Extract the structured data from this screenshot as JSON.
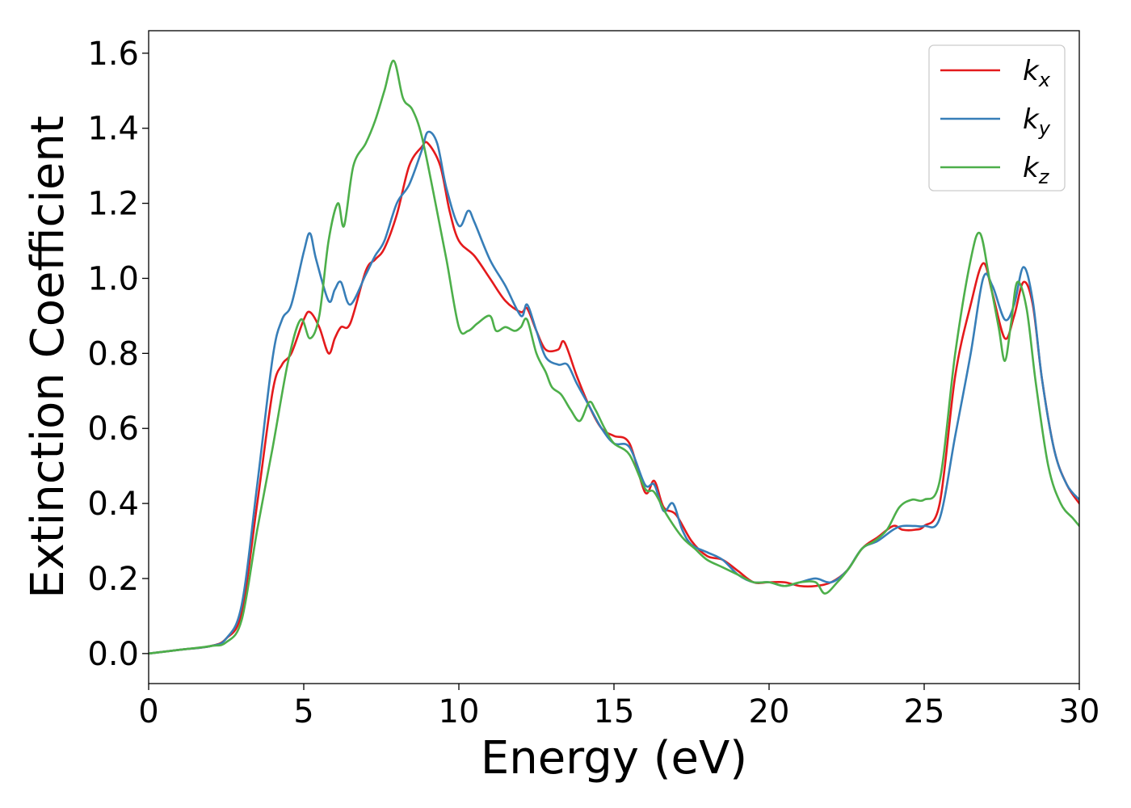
{
  "chart_data": {
    "type": "line",
    "title": "",
    "xlabel": "Energy (eV)",
    "ylabel": "Extinction Coefficient",
    "xlim": [
      0,
      30
    ],
    "ylim": [
      -0.08,
      1.66
    ],
    "xticks": [
      0,
      5,
      10,
      15,
      20,
      25,
      30
    ],
    "xtick_labels": [
      "0",
      "5",
      "10",
      "15",
      "20",
      "25",
      "30"
    ],
    "yticks": [
      0.0,
      0.2,
      0.4,
      0.6,
      0.8,
      1.0,
      1.2,
      1.4,
      1.6
    ],
    "ytick_labels": [
      "0.0",
      "0.2",
      "0.4",
      "0.6",
      "0.8",
      "1.0",
      "1.2",
      "1.4",
      "1.6"
    ],
    "grid": false,
    "legend_position": "top-right",
    "series": [
      {
        "name": "k",
        "subscript": "x",
        "color": "#e41a1c",
        "x": [
          0,
          1,
          2,
          2.5,
          3.0,
          3.5,
          4.0,
          4.3,
          4.6,
          5.0,
          5.2,
          5.5,
          5.8,
          6.0,
          6.2,
          6.5,
          7.0,
          7.3,
          7.6,
          8.0,
          8.4,
          8.8,
          9.0,
          9.4,
          9.7,
          10.0,
          10.5,
          11.0,
          11.5,
          12.0,
          12.2,
          12.5,
          12.8,
          13.2,
          13.4,
          13.8,
          14.2,
          14.6,
          15.0,
          15.5,
          16.0,
          16.3,
          16.6,
          17.0,
          17.5,
          18.0,
          18.5,
          19.0,
          19.5,
          20.0,
          20.5,
          21.0,
          21.5,
          22.0,
          22.5,
          23.0,
          23.5,
          24.0,
          24.3,
          24.7,
          25.0,
          25.5,
          26.0,
          26.5,
          26.9,
          27.2,
          27.6,
          27.9,
          28.2,
          28.5,
          28.8,
          29.2,
          29.6,
          30
        ],
        "values": [
          0.0,
          0.01,
          0.02,
          0.04,
          0.11,
          0.4,
          0.7,
          0.77,
          0.8,
          0.89,
          0.91,
          0.87,
          0.8,
          0.84,
          0.87,
          0.88,
          1.02,
          1.05,
          1.08,
          1.17,
          1.3,
          1.35,
          1.36,
          1.3,
          1.18,
          1.1,
          1.06,
          1.0,
          0.94,
          0.91,
          0.92,
          0.86,
          0.81,
          0.81,
          0.83,
          0.74,
          0.66,
          0.6,
          0.58,
          0.56,
          0.43,
          0.46,
          0.39,
          0.37,
          0.3,
          0.26,
          0.25,
          0.22,
          0.19,
          0.19,
          0.19,
          0.18,
          0.18,
          0.19,
          0.22,
          0.28,
          0.31,
          0.34,
          0.33,
          0.33,
          0.34,
          0.4,
          0.74,
          0.93,
          1.04,
          0.96,
          0.84,
          0.9,
          0.99,
          0.93,
          0.73,
          0.54,
          0.45,
          0.4
        ]
      },
      {
        "name": "k",
        "subscript": "y",
        "color": "#377eb8",
        "x": [
          0,
          1,
          2,
          2.5,
          3.0,
          3.5,
          4.0,
          4.3,
          4.6,
          5.0,
          5.2,
          5.4,
          5.8,
          6.0,
          6.2,
          6.5,
          7.0,
          7.3,
          7.6,
          8.0,
          8.4,
          8.8,
          9.0,
          9.3,
          9.6,
          10.0,
          10.3,
          10.5,
          11.0,
          11.5,
          12.0,
          12.2,
          12.5,
          12.8,
          13.2,
          13.5,
          13.8,
          14.2,
          14.6,
          15.0,
          15.5,
          16.0,
          16.3,
          16.6,
          16.9,
          17.2,
          17.5,
          18.0,
          18.5,
          19.0,
          19.5,
          20.0,
          20.5,
          21.0,
          21.5,
          22.0,
          22.5,
          23.0,
          23.5,
          24.0,
          24.3,
          24.7,
          25.0,
          25.5,
          26.0,
          26.5,
          26.9,
          27.2,
          27.6,
          27.9,
          28.2,
          28.5,
          28.8,
          29.2,
          29.6,
          30
        ],
        "values": [
          0.0,
          0.01,
          0.02,
          0.04,
          0.13,
          0.45,
          0.79,
          0.89,
          0.93,
          1.07,
          1.12,
          1.05,
          0.94,
          0.97,
          0.99,
          0.93,
          1.01,
          1.06,
          1.1,
          1.2,
          1.25,
          1.34,
          1.39,
          1.36,
          1.24,
          1.14,
          1.18,
          1.15,
          1.05,
          0.98,
          0.9,
          0.93,
          0.86,
          0.79,
          0.77,
          0.77,
          0.72,
          0.66,
          0.6,
          0.56,
          0.55,
          0.45,
          0.45,
          0.38,
          0.4,
          0.33,
          0.29,
          0.27,
          0.25,
          0.21,
          0.19,
          0.19,
          0.18,
          0.19,
          0.2,
          0.19,
          0.22,
          0.28,
          0.3,
          0.33,
          0.34,
          0.34,
          0.34,
          0.36,
          0.58,
          0.8,
          1.0,
          0.98,
          0.89,
          0.93,
          1.03,
          0.94,
          0.73,
          0.54,
          0.45,
          0.41
        ]
      },
      {
        "name": "k",
        "subscript": "z",
        "color": "#4daf4a",
        "x": [
          0,
          1,
          2,
          2.5,
          3.0,
          3.5,
          4.0,
          4.5,
          4.9,
          5.2,
          5.5,
          5.8,
          6.1,
          6.3,
          6.6,
          7.0,
          7.3,
          7.6,
          7.9,
          8.2,
          8.5,
          8.8,
          9.2,
          9.6,
          10.0,
          10.3,
          10.6,
          11.0,
          11.2,
          11.5,
          11.8,
          12.0,
          12.2,
          12.5,
          12.8,
          13.0,
          13.3,
          13.6,
          13.9,
          14.2,
          14.4,
          14.7,
          15.0,
          15.5,
          16.0,
          16.3,
          16.7,
          17.2,
          17.6,
          18.0,
          18.5,
          19.0,
          19.5,
          20.0,
          20.5,
          21.0,
          21.5,
          21.8,
          22.2,
          22.6,
          23.0,
          23.4,
          23.8,
          24.2,
          24.6,
          25.0,
          25.5,
          26.0,
          26.5,
          26.8,
          27.1,
          27.4,
          27.6,
          27.8,
          28.0,
          28.3,
          28.6,
          29.0,
          29.4,
          29.8,
          30
        ],
        "values": [
          0.0,
          0.01,
          0.02,
          0.03,
          0.09,
          0.33,
          0.55,
          0.78,
          0.89,
          0.84,
          0.9,
          1.1,
          1.2,
          1.14,
          1.3,
          1.36,
          1.42,
          1.5,
          1.58,
          1.48,
          1.45,
          1.38,
          1.22,
          1.05,
          0.87,
          0.86,
          0.88,
          0.9,
          0.86,
          0.87,
          0.86,
          0.87,
          0.89,
          0.8,
          0.75,
          0.71,
          0.69,
          0.65,
          0.62,
          0.67,
          0.65,
          0.6,
          0.56,
          0.53,
          0.44,
          0.43,
          0.37,
          0.31,
          0.28,
          0.25,
          0.23,
          0.21,
          0.19,
          0.19,
          0.18,
          0.19,
          0.19,
          0.16,
          0.19,
          0.23,
          0.28,
          0.3,
          0.33,
          0.39,
          0.41,
          0.41,
          0.46,
          0.8,
          1.05,
          1.12,
          1.0,
          0.87,
          0.78,
          0.88,
          0.99,
          0.92,
          0.72,
          0.5,
          0.4,
          0.36,
          0.34
        ]
      }
    ]
  }
}
